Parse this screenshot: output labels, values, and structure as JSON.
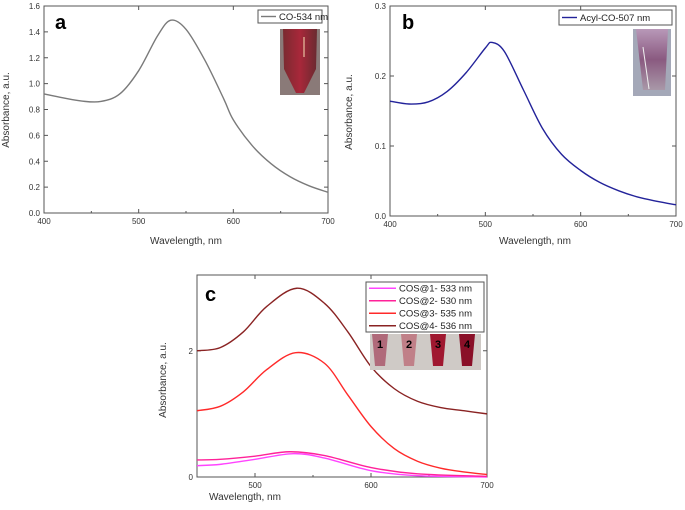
{
  "chart_data": [
    {
      "type": "line",
      "panel_label": "a",
      "xlabel": "Wavelength, nm",
      "ylabel": "Absorbance, a.u.",
      "xlim": [
        400,
        700
      ],
      "ylim": [
        0,
        1.6
      ],
      "xticks": [
        400,
        500,
        600,
        700
      ],
      "yticks": [
        "0.0",
        "0.2",
        "0.4",
        "0.6",
        "0.8",
        "1.0",
        "1.2",
        "1.4",
        "1.6"
      ],
      "legend_position": "top-right",
      "inset_photo": "vial-red",
      "series": [
        {
          "name": "CO-534 nm",
          "color": "#7a7a7a",
          "x": [
            400,
            420,
            440,
            460,
            480,
            500,
            520,
            534,
            550,
            570,
            590,
            600,
            620,
            640,
            660,
            680,
            700
          ],
          "y": [
            0.92,
            0.89,
            0.865,
            0.862,
            0.92,
            1.1,
            1.37,
            1.49,
            1.42,
            1.18,
            0.88,
            0.72,
            0.52,
            0.38,
            0.28,
            0.21,
            0.16
          ]
        }
      ]
    },
    {
      "type": "line",
      "panel_label": "b",
      "xlabel": "Wavelength, nm",
      "ylabel": "Absorbance, a.u.",
      "xlim": [
        400,
        700
      ],
      "ylim": [
        0,
        0.3
      ],
      "xticks": [
        400,
        500,
        600,
        700
      ],
      "yticks": [
        "0.0",
        "0.1",
        "0.2",
        "0.3"
      ],
      "legend_position": "top-right",
      "inset_photo": "vial-purple",
      "series": [
        {
          "name": "Acyl-CO-507 nm",
          "color": "#23239a",
          "x": [
            400,
            420,
            440,
            460,
            480,
            500,
            507,
            520,
            540,
            560,
            580,
            600,
            620,
            640,
            660,
            680,
            700
          ],
          "y": [
            0.164,
            0.16,
            0.163,
            0.178,
            0.205,
            0.24,
            0.248,
            0.235,
            0.18,
            0.125,
            0.088,
            0.065,
            0.048,
            0.036,
            0.027,
            0.021,
            0.016
          ]
        }
      ]
    },
    {
      "type": "line",
      "panel_label": "c",
      "xlabel": "Wavelength, nm",
      "ylabel": "Absorbance, a.u.",
      "xlim": [
        450,
        700
      ],
      "ylim": [
        0,
        3.2
      ],
      "xticks": [
        500,
        600,
        700
      ],
      "yticks": [
        "0",
        "2"
      ],
      "legend_position": "top-right",
      "inset_photo": "four-vials",
      "vial_labels": [
        "1",
        "2",
        "3",
        "4"
      ],
      "series": [
        {
          "name": "COS@1- 533 nm",
          "color": "#ff44ff",
          "x": [
            450,
            470,
            500,
            533,
            560,
            600,
            640,
            700
          ],
          "y": [
            0.18,
            0.2,
            0.28,
            0.37,
            0.3,
            0.1,
            0.02,
            0.0
          ]
        },
        {
          "name": "COS@2- 530 nm",
          "color": "#ff2299",
          "x": [
            450,
            470,
            500,
            530,
            560,
            600,
            640,
            700
          ],
          "y": [
            0.27,
            0.28,
            0.33,
            0.4,
            0.34,
            0.15,
            0.05,
            0.01
          ]
        },
        {
          "name": "COS@3- 535 nm",
          "color": "#ff2a2a",
          "x": [
            450,
            470,
            490,
            510,
            535,
            560,
            580,
            600,
            620,
            640,
            660,
            680,
            700
          ],
          "y": [
            1.05,
            1.12,
            1.35,
            1.7,
            1.97,
            1.8,
            1.3,
            0.8,
            0.45,
            0.25,
            0.14,
            0.08,
            0.04
          ]
        },
        {
          "name": "COS@4- 536 nm",
          "color": "#8a2323",
          "x": [
            450,
            470,
            490,
            510,
            536,
            560,
            580,
            600,
            620,
            640,
            660,
            680,
            700
          ],
          "y": [
            2.0,
            2.05,
            2.3,
            2.7,
            2.99,
            2.75,
            2.3,
            1.75,
            1.4,
            1.2,
            1.1,
            1.05,
            1.0
          ]
        }
      ]
    }
  ]
}
